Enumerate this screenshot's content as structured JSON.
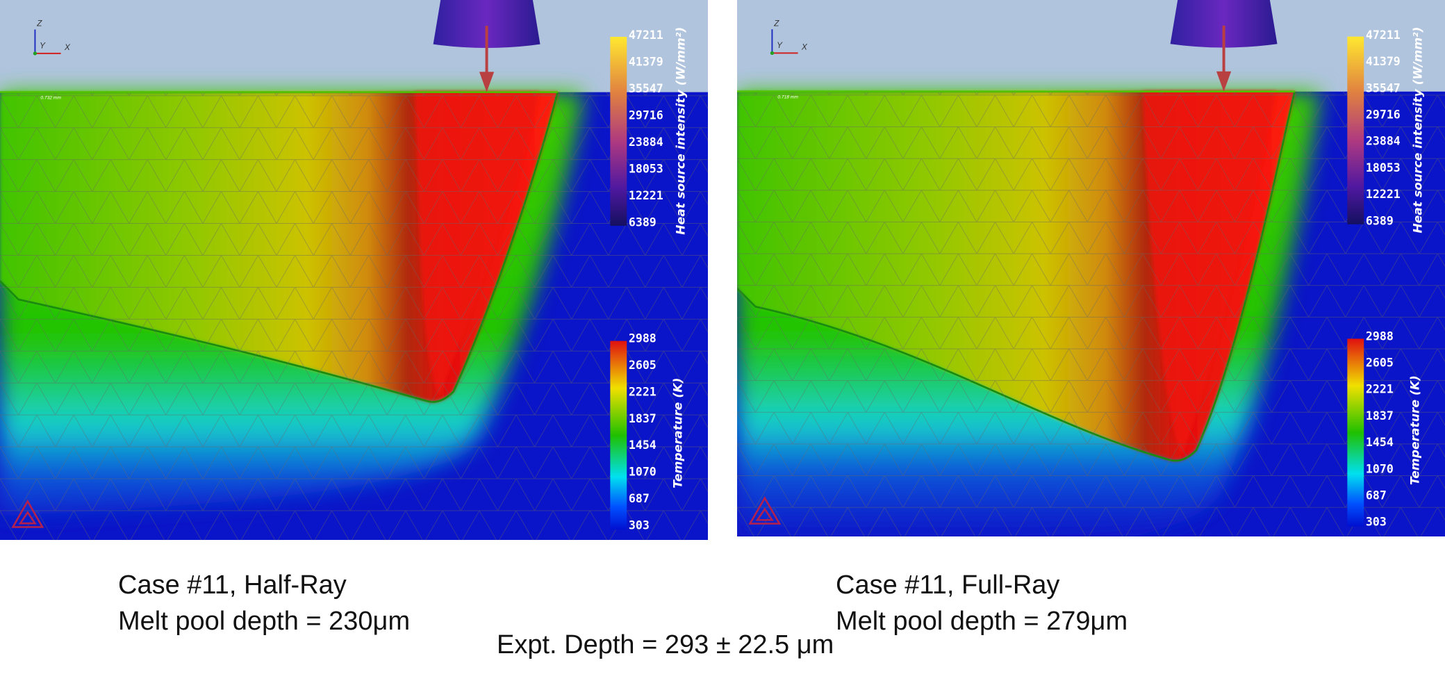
{
  "panels": [
    {
      "scale_label": "0.732 mm",
      "axes": [
        "Z",
        "Y",
        "X"
      ],
      "heat_colorbar": {
        "title": "Heat source intensity (W/mm²)",
        "ticks": [
          47211,
          41379,
          35547,
          29716,
          23884,
          18053,
          12221,
          6389
        ]
      },
      "temp_colorbar": {
        "title": "Temperature (K)",
        "ticks": [
          2988,
          2605,
          2221,
          1837,
          1454,
          1070,
          687,
          303
        ]
      },
      "caption": {
        "title": "Case #11, Half-Ray",
        "depth": "Melt pool depth = 230μm"
      }
    },
    {
      "scale_label": "0.718 mm",
      "axes": [
        "Z",
        "Y",
        "X"
      ],
      "heat_colorbar": {
        "title": "Heat source intensity (W/mm²)",
        "ticks": [
          47211,
          41379,
          35547,
          29716,
          23884,
          18053,
          12221,
          6389
        ]
      },
      "temp_colorbar": {
        "title": "Temperature (K)",
        "ticks": [
          2988,
          2605,
          2221,
          1837,
          1454,
          1070,
          687,
          303
        ]
      },
      "caption": {
        "title": "Case #11, Full-Ray",
        "depth": "Melt pool depth = 279μm"
      }
    }
  ],
  "footer": "Expt. Depth = 293 ± 22.5 μm"
}
